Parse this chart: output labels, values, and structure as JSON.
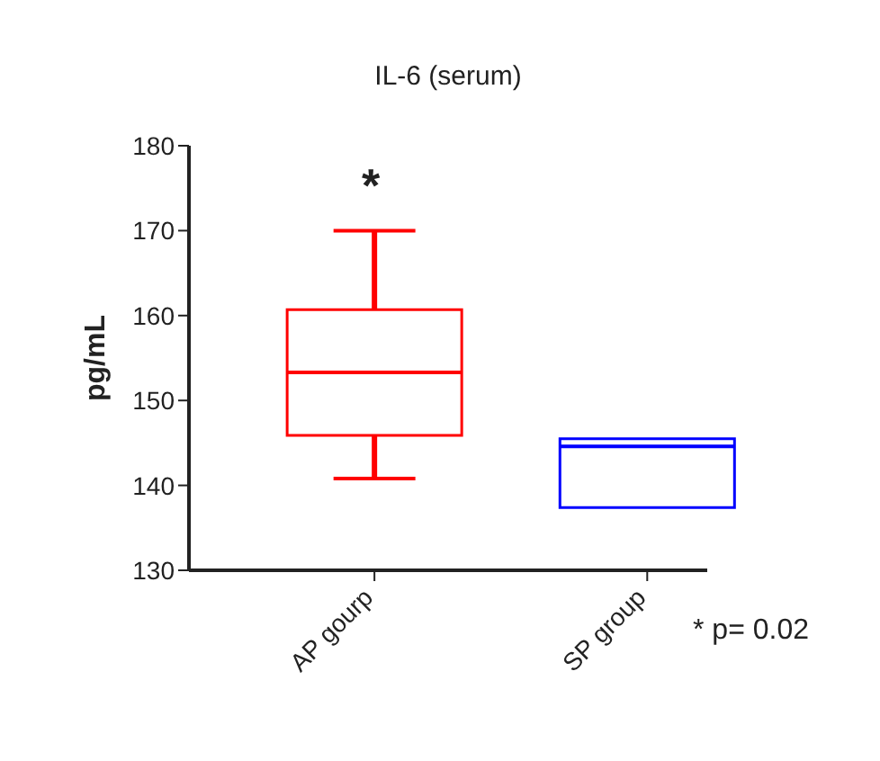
{
  "chart_data": {
    "type": "box",
    "title": "IL-6 (serum)",
    "ylabel": "pg/mL",
    "categories": [
      "AP gourp",
      "SP group"
    ],
    "boxes": [
      {
        "low": 140.8,
        "q1": 145.9,
        "median": 153.3,
        "q3": 160.7,
        "high": 170
      },
      {
        "low": 137.4,
        "q1": 137.4,
        "median": 144.6,
        "q3": 145.5,
        "high": 145.5
      }
    ],
    "colors": [
      "#ff0000",
      "#0000ff"
    ],
    "ylim": [
      130,
      180
    ],
    "yticks": [
      130,
      140,
      150,
      160,
      170,
      180
    ],
    "grid": false,
    "annotations": [
      "*",
      "* p= 0.02"
    ]
  }
}
